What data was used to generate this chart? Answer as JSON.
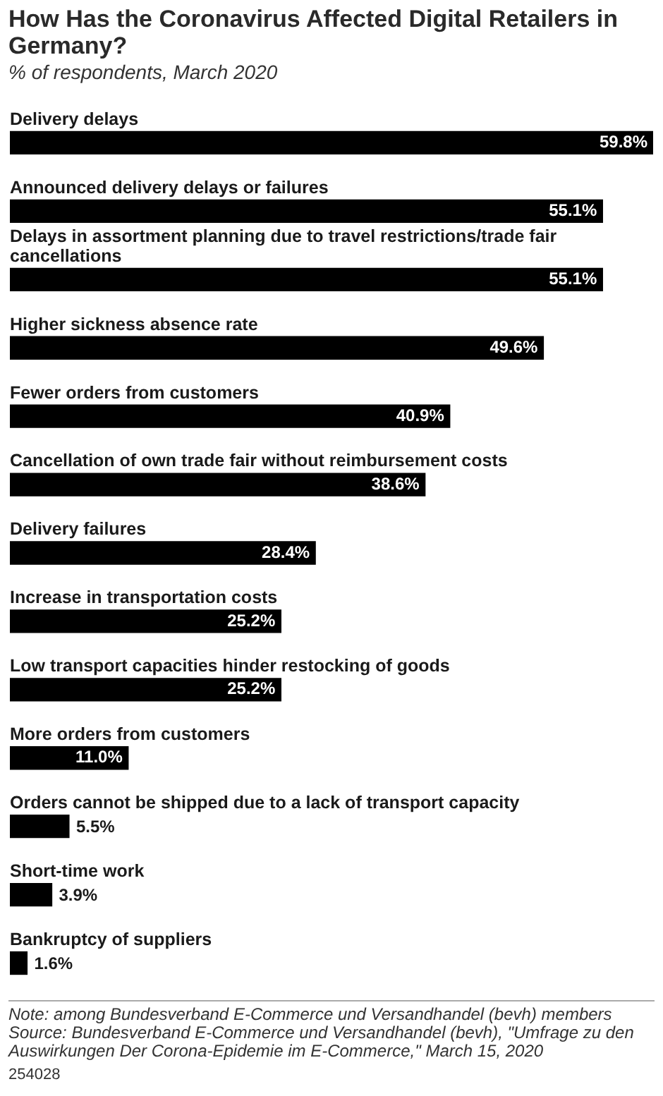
{
  "chart_data": {
    "type": "bar",
    "orientation": "horizontal",
    "title": "How Has the Coronavirus Affected Digital Retailers in Germany?",
    "subtitle": "% of respondents, March 2020",
    "categories": [
      "Delivery delays",
      "Announced delivery delays or failures",
      "Delays in assortment planning due to travel restrictions/trade fair cancellations",
      "Higher sickness absence rate",
      "Fewer orders from customers",
      "Cancellation of own trade fair without reimbursement costs",
      "Delivery failures",
      "Increase in transportation costs",
      "Low transport capacities hinder restocking of goods",
      "More orders from customers",
      "Orders cannot be shipped due to a lack of transport capacity",
      "Short-time work",
      "Bankruptcy of suppliers"
    ],
    "values": [
      59.8,
      55.1,
      55.1,
      49.6,
      40.9,
      38.6,
      28.4,
      25.2,
      25.2,
      11.0,
      5.5,
      3.9,
      1.6
    ],
    "value_labels": [
      "59.8%",
      "55.1%",
      "55.1%",
      "49.6%",
      "40.9%",
      "38.6%",
      "28.4%",
      "25.2%",
      "25.2%",
      "11.0%",
      "5.5%",
      "3.9%",
      "1.6%"
    ],
    "color": "#000000",
    "legend": false,
    "annotations": [
      "Note: among Bundesverband E-Commerce und Versandhandel (bevh) members",
      "Source: Bundesverband E-Commerce und Versandhandel (bevh), \"Umfrage zu den Auswirkungen Der Corona-Epidemie im E-Commerce,\" March 15, 2020",
      "254028"
    ]
  }
}
